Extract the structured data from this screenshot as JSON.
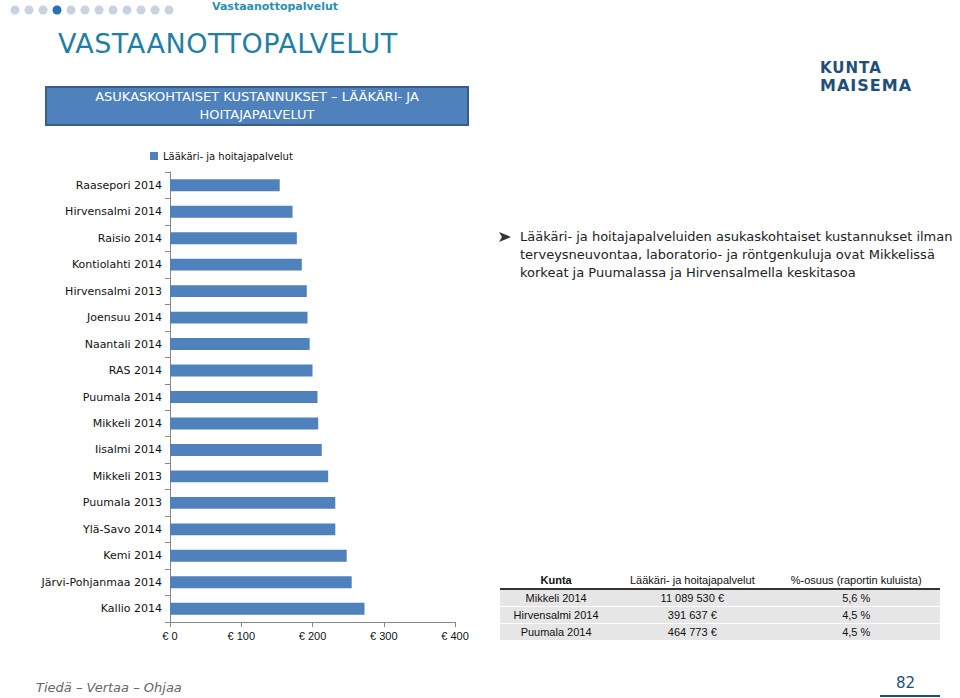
{
  "slide": {
    "section": "Vastaanottopalvelut",
    "title": "VASTAANOTTOPALVELUT",
    "subtitle": "ASUKASKOHTAISET KUSTANNUKSET – LÄÄKÄRI- JA HOITAJAPALVELUT",
    "bullet": "Lääkäri- ja hoitajapalveluiden asukaskohtaiset kustannukset ilman terveysneuvontaa, laboratorio- ja röntgenkuluja ovat Mikkelissä korkeat ja Puumalassa ja Hirvensalmella keskitasoa",
    "logo": [
      "KUNTA",
      "MAISEMA"
    ],
    "footer": "Tiedä – Vertaa – Ohjaa",
    "page": "82"
  },
  "table": {
    "header": [
      "Kunta",
      "Lääkäri- ja hoitajapalvelut",
      "%-osuus (raportin kuluista)"
    ],
    "rows": [
      [
        "Mikkeli 2014",
        "11 089 530 €",
        "5,6 %"
      ],
      [
        "Hirvensalmi 2014",
        "391 637 €",
        "4,5 %"
      ],
      [
        "Puumala 2014",
        "464 773 €",
        "4,5 %"
      ]
    ]
  },
  "chart_data": {
    "type": "bar",
    "orientation": "horizontal",
    "categories": [
      "Raasepori 2014",
      "Hirvensalmi 2014",
      "Raisio 2014",
      "Kontiolahti 2014",
      "Hirvensalmi 2013",
      "Joensuu 2014",
      "Naantali 2014",
      "RAS 2014",
      "Puumala 2014",
      "Mikkeli 2014",
      "Iisalmi 2014",
      "Mikkeli 2013",
      "Puumala 2013",
      "Ylä-Savo 2014",
      "Kemi 2014",
      "Järvi-Pohjanmaa 2014",
      "Kallio 2014"
    ],
    "series": [
      {
        "name": "Lääkäri- ja hoitajapalvelut",
        "color": "#4f81bd",
        "values": [
          154,
          172,
          178,
          185,
          192,
          193,
          196,
          200,
          207,
          208,
          213,
          222,
          232,
          232,
          248,
          255,
          273
        ]
      }
    ],
    "xlim": [
      0,
      400
    ],
    "xticks": [
      {
        "value": 0,
        "label": "€ 0"
      },
      {
        "value": 100,
        "label": "€ 100"
      },
      {
        "value": 200,
        "label": "€ 200"
      },
      {
        "value": 300,
        "label": "€ 300"
      },
      {
        "value": 400,
        "label": "€ 400"
      }
    ],
    "legend": "top",
    "grid": false
  }
}
